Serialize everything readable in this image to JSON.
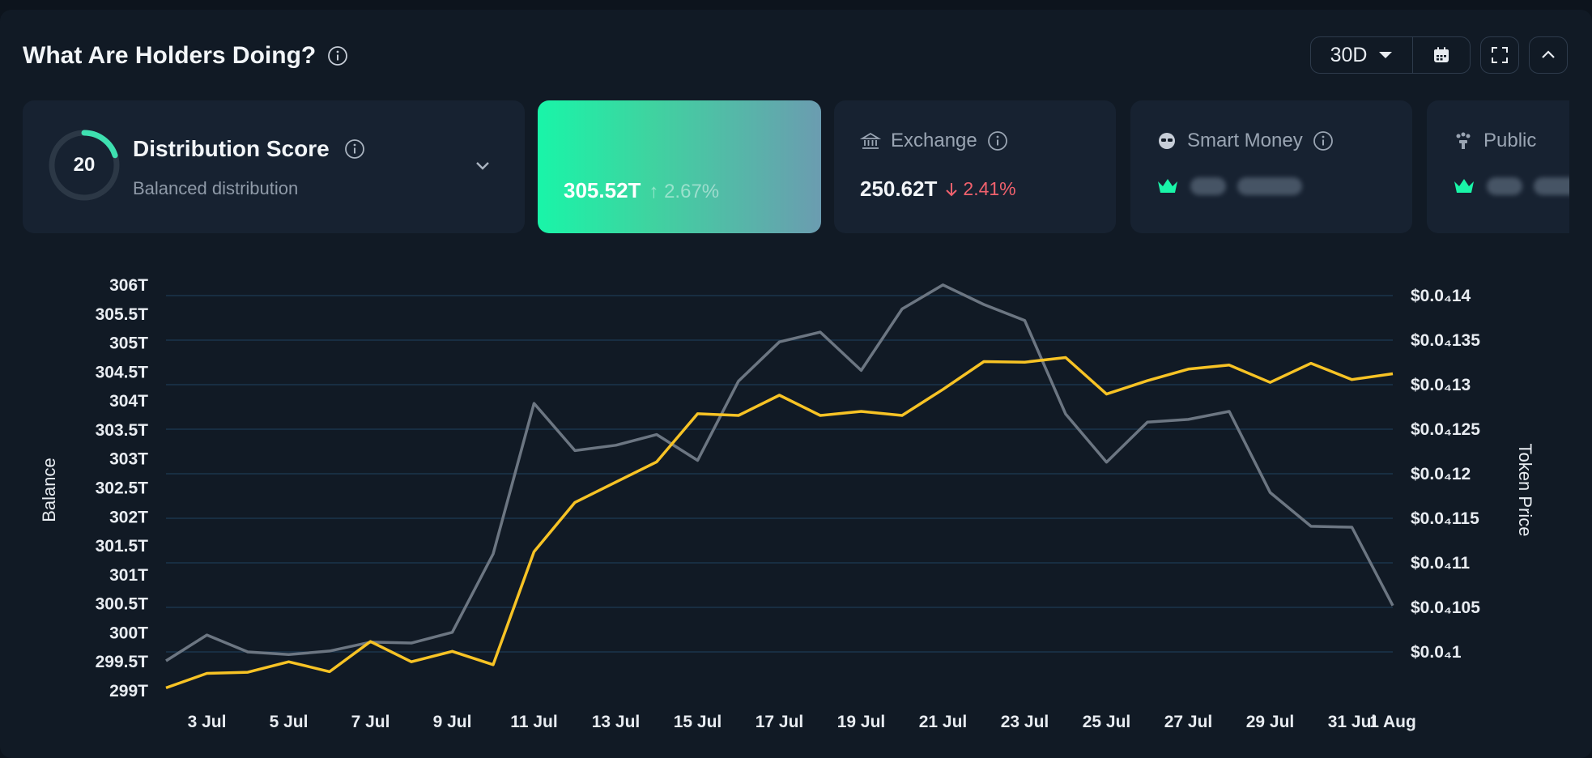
{
  "header": {
    "title": "What Are Holders Doing?",
    "range_label": "30D"
  },
  "score_card": {
    "score": "20",
    "score_fraction": 0.2,
    "title": "Distribution Score",
    "subtitle": "Balanced distribution"
  },
  "active_card": {
    "value": "305.52T",
    "change": "2.67%"
  },
  "exchange_card": {
    "label": "Exchange",
    "value": "250.62T",
    "change": "2.41%"
  },
  "smart_money_card": {
    "label": "Smart Money"
  },
  "public_card": {
    "label": "Public"
  },
  "colors": {
    "balance_line": "#f7c325",
    "price_line": "#6c7682",
    "accent_green": "#19f5a8",
    "negative": "#f0616d",
    "gridline": "#1e3a55"
  },
  "chart_data": {
    "type": "line",
    "xlabel": "",
    "ylabel": "Balance",
    "y2label": "Token Price",
    "x_ticks": [
      "3 Jul",
      "5 Jul",
      "7 Jul",
      "9 Jul",
      "11 Jul",
      "13 Jul",
      "15 Jul",
      "17 Jul",
      "19 Jul",
      "21 Jul",
      "23 Jul",
      "25 Jul",
      "27 Jul",
      "29 Jul",
      "31 Jul",
      "1 Aug"
    ],
    "y_ticks": [
      "306T",
      "305.5T",
      "305T",
      "304.5T",
      "304T",
      "303.5T",
      "303T",
      "302.5T",
      "302T",
      "301.5T",
      "301T",
      "300.5T",
      "300T",
      "299.5T",
      "299T"
    ],
    "y2_ticks": [
      "$0.0₄14",
      "$0.0₄135",
      "$0.0₄13",
      "$0.0₄125",
      "$0.0₄12",
      "$0.0₄115",
      "$0.0₄11",
      "$0.0₄105",
      "$0.0₄1"
    ],
    "ylim": [
      299,
      306
    ],
    "y2lim": [
      1e-05,
      1.4e-05
    ],
    "grid": true,
    "dates": [
      "2 Jul",
      "3 Jul",
      "4 Jul",
      "5 Jul",
      "6 Jul",
      "7 Jul",
      "8 Jul",
      "9 Jul",
      "10 Jul",
      "11 Jul",
      "12 Jul",
      "13 Jul",
      "14 Jul",
      "15 Jul",
      "16 Jul",
      "17 Jul",
      "18 Jul",
      "19 Jul",
      "20 Jul",
      "21 Jul",
      "22 Jul",
      "23 Jul",
      "24 Jul",
      "25 Jul",
      "26 Jul",
      "27 Jul",
      "28 Jul",
      "29 Jul",
      "30 Jul",
      "31 Jul",
      "1 Aug"
    ],
    "series": [
      {
        "name": "Balance",
        "axis": "left",
        "values": [
          299.05,
          299.3,
          299.32,
          299.5,
          299.33,
          299.85,
          299.5,
          299.68,
          299.45,
          301.4,
          302.25,
          302.6,
          302.95,
          303.78,
          303.75,
          304.1,
          303.75,
          303.82,
          303.75,
          304.2,
          304.68,
          304.67,
          304.75,
          304.12,
          304.35,
          304.55,
          304.62,
          304.32,
          304.65,
          304.37,
          304.47
        ]
      },
      {
        "name": "Token Price",
        "axis": "right",
        "values": [
          9.9e-06,
          1.019e-05,
          1e-05,
          9.97e-06,
          1.001e-05,
          1.011e-05,
          1.01e-05,
          1.022e-05,
          1.11e-05,
          1.279e-05,
          1.226e-05,
          1.232e-05,
          1.244e-05,
          1.215e-05,
          1.304e-05,
          1.348e-05,
          1.359e-05,
          1.316e-05,
          1.385e-05,
          1.412e-05,
          1.39e-05,
          1.372e-05,
          1.267e-05,
          1.213e-05,
          1.258e-05,
          1.261e-05,
          1.27e-05,
          1.179e-05,
          1.141e-05,
          1.14e-05,
          1.052e-05
        ]
      }
    ]
  }
}
